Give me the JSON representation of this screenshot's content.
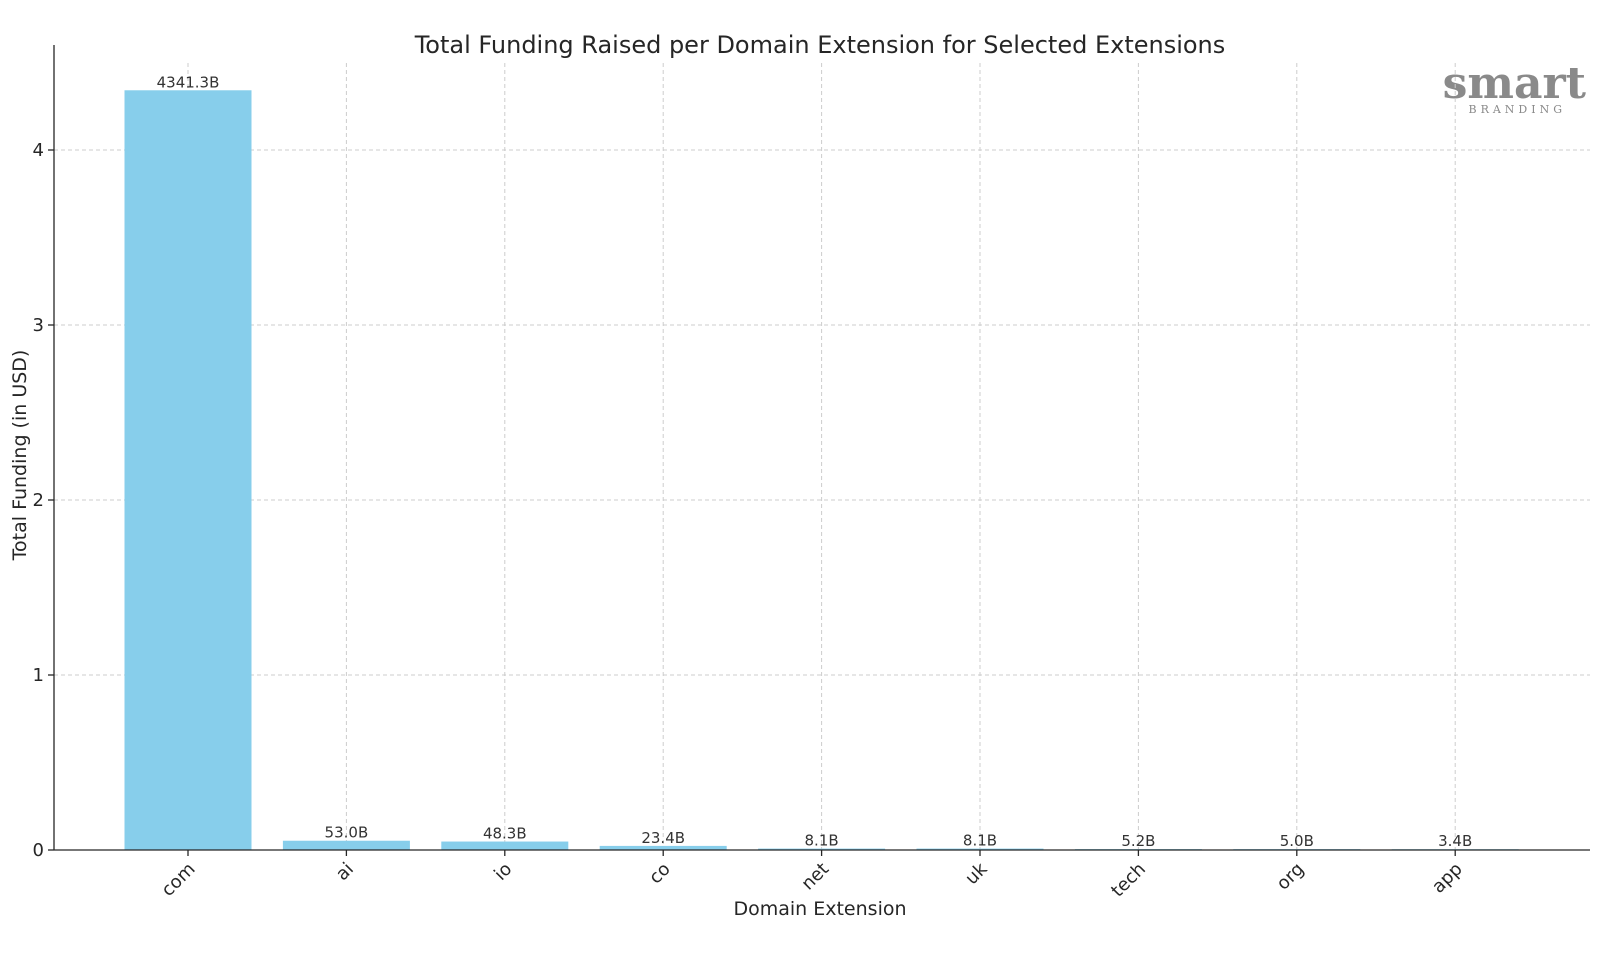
{
  "logo": {
    "main": "smart",
    "sub": "BRANDING"
  },
  "chart_data": {
    "type": "bar",
    "title": "Total Funding Raised per Domain Extension for Selected Extensions",
    "xlabel": "Domain Extension",
    "ylabel": "Total Funding (in USD)",
    "categories": [
      "com",
      "ai",
      "io",
      "co",
      "net",
      "uk",
      "tech",
      "org",
      "app"
    ],
    "values": [
      4341.3,
      53.0,
      48.3,
      23.4,
      8.1,
      8.1,
      5.2,
      5.0,
      3.4
    ],
    "value_unit": "B",
    "data_labels": [
      "4341.3B",
      "53.0B",
      "48.3B",
      "23.4B",
      "8.1B",
      "8.1B",
      "5.2B",
      "5.0B",
      "3.4B"
    ],
    "yticks": [
      0,
      1,
      2,
      3,
      4
    ],
    "y_tick_scale": 1000,
    "ylim": [
      0,
      4.6
    ],
    "grid": true,
    "bar_color": "#87ceeb",
    "legend": "none"
  }
}
